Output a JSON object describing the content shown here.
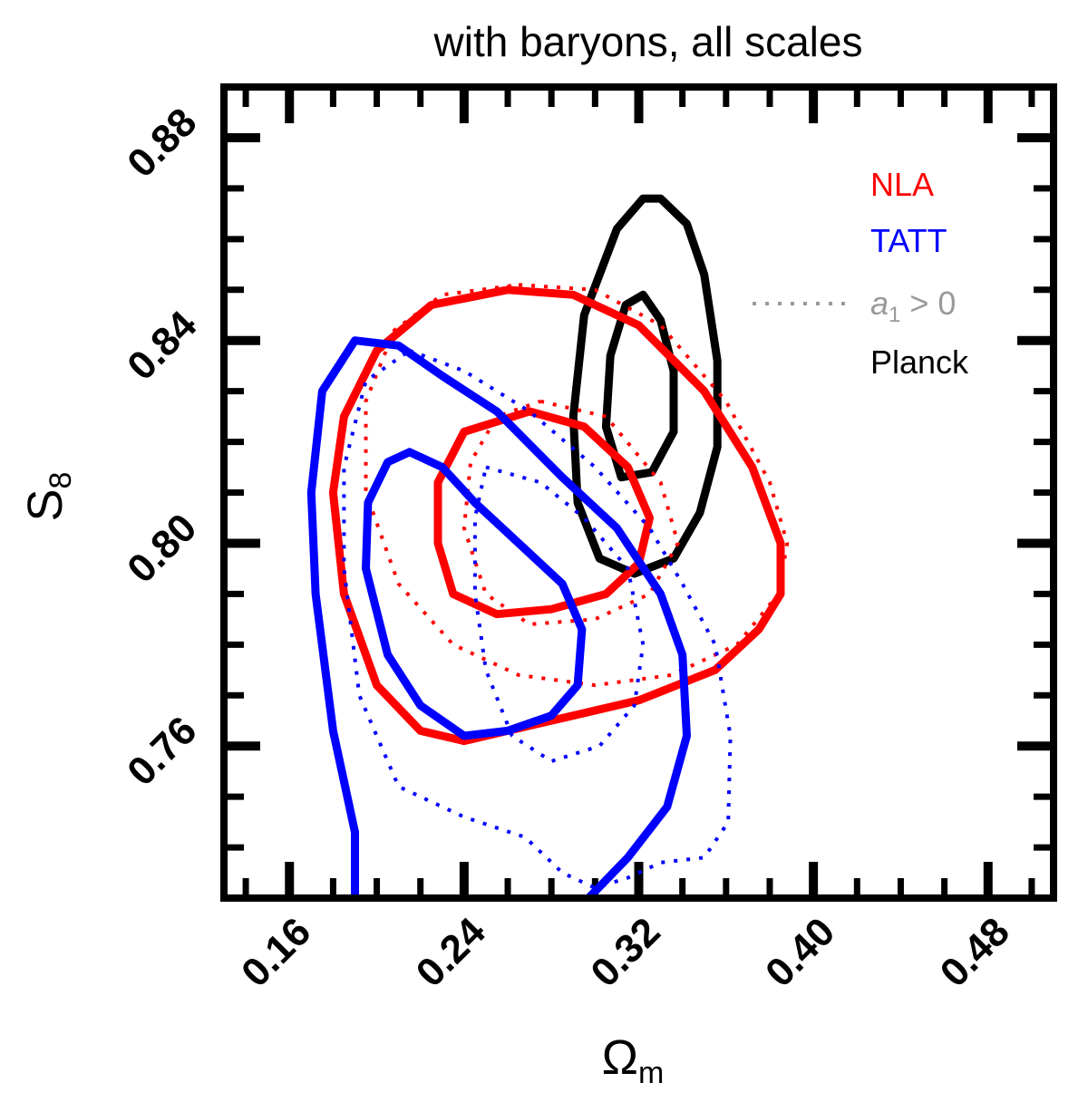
{
  "chart_data": {
    "type": "line",
    "title": "with baryons, all scales",
    "xlabel": "Ω",
    "xlabel_sub": "m",
    "ylabel": "S",
    "ylabel_sub": "8",
    "xlim": [
      0.13,
      0.51
    ],
    "ylim": [
      0.73,
      0.89
    ],
    "xticks": [
      0.16,
      0.24,
      0.32,
      0.4,
      0.48
    ],
    "xtick_labels": [
      "0.16",
      "0.24",
      "0.32",
      "0.40",
      "0.48"
    ],
    "yticks": [
      0.76,
      0.8,
      0.84,
      0.88
    ],
    "ytick_labels": [
      "0.76",
      "0.80",
      "0.84",
      "0.88"
    ],
    "grid": false,
    "legend_position": "top-right",
    "legend": [
      {
        "label": "NLA",
        "color": "#ff0000",
        "style": "solid"
      },
      {
        "label": "TATT",
        "color": "#0000ff",
        "style": "solid"
      },
      {
        "label_main": "a",
        "label_sub": "1",
        "label_rest": " > 0",
        "color": "#999999",
        "style": "dotted"
      },
      {
        "label": "Planck",
        "color": "#000000",
        "style": "solid"
      }
    ],
    "series": [
      {
        "group": "Planck",
        "level": "outer",
        "color": "#000000",
        "style": "solid",
        "points": [
          [
            0.33,
            0.868
          ],
          [
            0.342,
            0.863
          ],
          [
            0.35,
            0.853
          ],
          [
            0.356,
            0.836
          ],
          [
            0.356,
            0.819
          ],
          [
            0.348,
            0.806
          ],
          [
            0.336,
            0.797
          ],
          [
            0.318,
            0.794
          ],
          [
            0.302,
            0.797
          ],
          [
            0.292,
            0.808
          ],
          [
            0.29,
            0.825
          ],
          [
            0.295,
            0.845
          ],
          [
            0.31,
            0.862
          ],
          [
            0.322,
            0.868
          ],
          [
            0.33,
            0.868
          ]
        ]
      },
      {
        "group": "Planck",
        "level": "inner",
        "color": "#000000",
        "style": "solid",
        "points": [
          [
            0.322,
            0.849
          ],
          [
            0.33,
            0.844
          ],
          [
            0.336,
            0.834
          ],
          [
            0.336,
            0.822
          ],
          [
            0.326,
            0.814
          ],
          [
            0.312,
            0.813
          ],
          [
            0.305,
            0.823
          ],
          [
            0.307,
            0.837
          ],
          [
            0.314,
            0.847
          ],
          [
            0.322,
            0.849
          ]
        ]
      },
      {
        "group": "NLA",
        "level": "outer",
        "color": "#ff0000",
        "style": "solid",
        "points": [
          [
            0.26,
            0.85
          ],
          [
            0.29,
            0.849
          ],
          [
            0.32,
            0.843
          ],
          [
            0.35,
            0.83
          ],
          [
            0.372,
            0.815
          ],
          [
            0.385,
            0.8
          ],
          [
            0.385,
            0.79
          ],
          [
            0.375,
            0.783
          ],
          [
            0.355,
            0.775
          ],
          [
            0.32,
            0.769
          ],
          [
            0.27,
            0.764
          ],
          [
            0.24,
            0.761
          ],
          [
            0.22,
            0.763
          ],
          [
            0.2,
            0.772
          ],
          [
            0.185,
            0.79
          ],
          [
            0.18,
            0.81
          ],
          [
            0.185,
            0.825
          ],
          [
            0.2,
            0.838
          ],
          [
            0.225,
            0.847
          ],
          [
            0.26,
            0.85
          ]
        ]
      },
      {
        "group": "NLA",
        "level": "inner",
        "color": "#ff0000",
        "style": "solid",
        "points": [
          [
            0.27,
            0.826
          ],
          [
            0.295,
            0.823
          ],
          [
            0.315,
            0.815
          ],
          [
            0.325,
            0.805
          ],
          [
            0.32,
            0.796
          ],
          [
            0.305,
            0.79
          ],
          [
            0.28,
            0.787
          ],
          [
            0.255,
            0.786
          ],
          [
            0.235,
            0.79
          ],
          [
            0.228,
            0.8
          ],
          [
            0.228,
            0.812
          ],
          [
            0.24,
            0.822
          ],
          [
            0.27,
            0.826
          ]
        ]
      },
      {
        "group": "NLA",
        "level": "outer",
        "color": "#ff0000",
        "style": "dotted",
        "dash": "4 10",
        "points": [
          [
            0.265,
            0.851
          ],
          [
            0.3,
            0.85
          ],
          [
            0.33,
            0.843
          ],
          [
            0.36,
            0.828
          ],
          [
            0.38,
            0.812
          ],
          [
            0.388,
            0.8
          ],
          [
            0.384,
            0.79
          ],
          [
            0.365,
            0.78
          ],
          [
            0.335,
            0.774
          ],
          [
            0.3,
            0.772
          ],
          [
            0.265,
            0.774
          ],
          [
            0.235,
            0.78
          ],
          [
            0.21,
            0.792
          ],
          [
            0.195,
            0.81
          ],
          [
            0.195,
            0.828
          ],
          [
            0.208,
            0.842
          ],
          [
            0.23,
            0.849
          ],
          [
            0.265,
            0.851
          ]
        ]
      },
      {
        "group": "NLA",
        "level": "inner",
        "color": "#ff0000",
        "style": "dotted",
        "dash": "4 10",
        "points": [
          [
            0.275,
            0.828
          ],
          [
            0.305,
            0.825
          ],
          [
            0.33,
            0.812
          ],
          [
            0.338,
            0.8
          ],
          [
            0.325,
            0.79
          ],
          [
            0.3,
            0.785
          ],
          [
            0.27,
            0.784
          ],
          [
            0.25,
            0.79
          ],
          [
            0.24,
            0.803
          ],
          [
            0.243,
            0.816
          ],
          [
            0.255,
            0.825
          ],
          [
            0.275,
            0.828
          ]
        ]
      },
      {
        "group": "TATT",
        "level": "outer",
        "color": "#0000ff",
        "style": "solid",
        "points": [
          [
            0.19,
            0.73
          ],
          [
            0.19,
            0.743
          ],
          [
            0.18,
            0.763
          ],
          [
            0.172,
            0.79
          ],
          [
            0.17,
            0.81
          ],
          [
            0.175,
            0.83
          ],
          [
            0.19,
            0.84
          ],
          [
            0.21,
            0.839
          ],
          [
            0.23,
            0.833
          ],
          [
            0.255,
            0.826
          ],
          [
            0.285,
            0.813
          ],
          [
            0.31,
            0.803
          ],
          [
            0.33,
            0.79
          ],
          [
            0.34,
            0.778
          ],
          [
            0.342,
            0.762
          ],
          [
            0.333,
            0.748
          ],
          [
            0.315,
            0.738
          ],
          [
            0.297,
            0.73
          ]
        ]
      },
      {
        "group": "TATT",
        "level": "inner",
        "color": "#0000ff",
        "style": "solid",
        "points": [
          [
            0.215,
            0.818
          ],
          [
            0.23,
            0.815
          ],
          [
            0.245,
            0.808
          ],
          [
            0.265,
            0.8
          ],
          [
            0.285,
            0.792
          ],
          [
            0.294,
            0.783
          ],
          [
            0.292,
            0.772
          ],
          [
            0.28,
            0.766
          ],
          [
            0.26,
            0.763
          ],
          [
            0.24,
            0.762
          ],
          [
            0.22,
            0.768
          ],
          [
            0.205,
            0.778
          ],
          [
            0.195,
            0.795
          ],
          [
            0.196,
            0.808
          ],
          [
            0.205,
            0.816
          ],
          [
            0.215,
            0.818
          ]
        ]
      },
      {
        "group": "TATT",
        "level": "outer",
        "color": "#0000ff",
        "style": "dotted",
        "dash": "4 10",
        "points": [
          [
            0.215,
            0.838
          ],
          [
            0.24,
            0.834
          ],
          [
            0.27,
            0.826
          ],
          [
            0.3,
            0.815
          ],
          [
            0.325,
            0.803
          ],
          [
            0.34,
            0.792
          ],
          [
            0.355,
            0.78
          ],
          [
            0.362,
            0.762
          ],
          [
            0.361,
            0.745
          ],
          [
            0.35,
            0.738
          ],
          [
            0.33,
            0.737
          ],
          [
            0.315,
            0.734
          ],
          [
            0.3,
            0.732
          ],
          [
            0.285,
            0.735
          ],
          [
            0.268,
            0.742
          ],
          [
            0.24,
            0.746
          ],
          [
            0.21,
            0.752
          ],
          [
            0.192,
            0.77
          ],
          [
            0.185,
            0.795
          ],
          [
            0.185,
            0.815
          ],
          [
            0.195,
            0.832
          ],
          [
            0.215,
            0.838
          ]
        ]
      },
      {
        "group": "TATT",
        "level": "inner",
        "color": "#0000ff",
        "style": "dotted",
        "dash": "4 10",
        "points": [
          [
            0.25,
            0.815
          ],
          [
            0.275,
            0.812
          ],
          [
            0.295,
            0.805
          ],
          [
            0.315,
            0.795
          ],
          [
            0.322,
            0.78
          ],
          [
            0.318,
            0.768
          ],
          [
            0.302,
            0.76
          ],
          [
            0.28,
            0.757
          ],
          [
            0.262,
            0.762
          ],
          [
            0.25,
            0.775
          ],
          [
            0.245,
            0.79
          ],
          [
            0.245,
            0.805
          ],
          [
            0.25,
            0.815
          ]
        ]
      }
    ]
  }
}
